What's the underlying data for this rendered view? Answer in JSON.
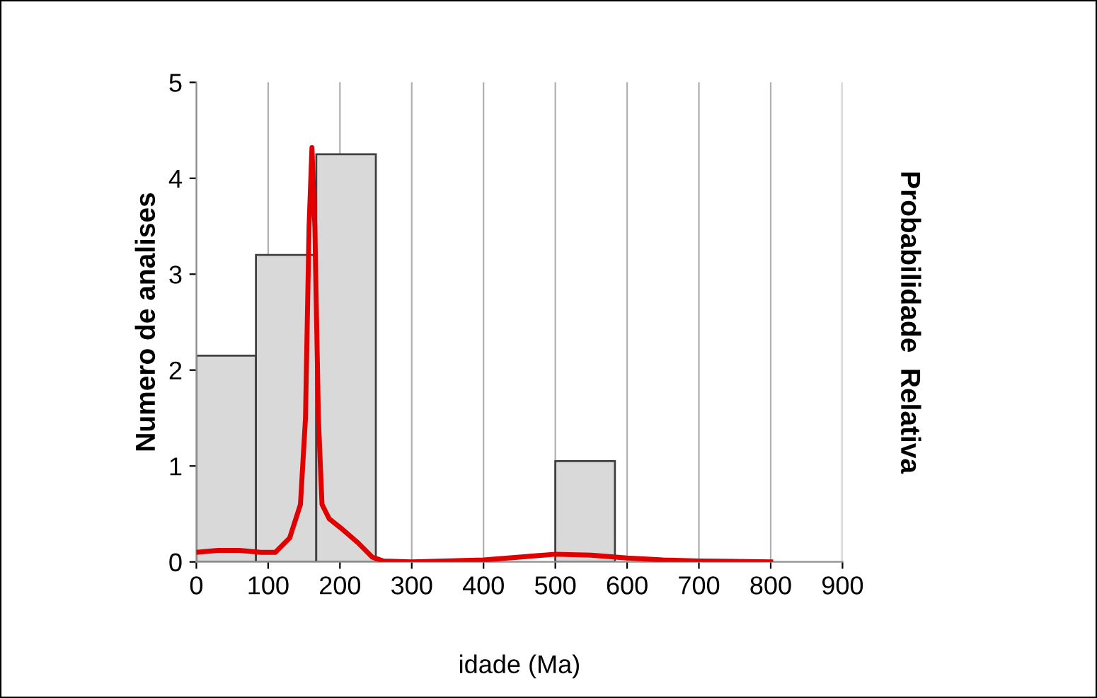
{
  "chart_data": {
    "type": "histogram",
    "xlabel": "idade (Ma)",
    "ylabel": "Numero de analises",
    "y2label": "Probabilidade  Relativa",
    "bins": [
      0,
      83,
      167,
      250,
      500,
      583
    ],
    "values": [
      2.15,
      3.2,
      4.25,
      0,
      1.05
    ],
    "color": "#d9d9d9",
    "series": [
      {
        "type": "line",
        "color": "#e00000",
        "x": [
          0,
          30,
          60,
          90,
          110,
          130,
          145,
          152,
          157,
          161,
          165,
          170,
          175,
          185,
          205,
          225,
          245,
          260,
          300,
          400,
          450,
          500,
          550,
          600,
          650,
          700,
          800
        ],
        "values": [
          0.1,
          0.12,
          0.12,
          0.1,
          0.1,
          0.25,
          0.6,
          1.5,
          3.5,
          4.32,
          3.5,
          1.5,
          0.6,
          0.45,
          0.33,
          0.2,
          0.05,
          0.01,
          0,
          0.02,
          0.05,
          0.08,
          0.07,
          0.04,
          0.02,
          0.01,
          0
        ]
      }
    ],
    "xlim": [
      0,
      900
    ],
    "xticks": [
      0,
      100,
      200,
      300,
      400,
      500,
      600,
      700,
      800,
      900
    ],
    "ylim": [
      0,
      5
    ],
    "yticks": [
      0,
      1,
      2,
      3,
      4,
      5
    ],
    "grid": "x"
  }
}
